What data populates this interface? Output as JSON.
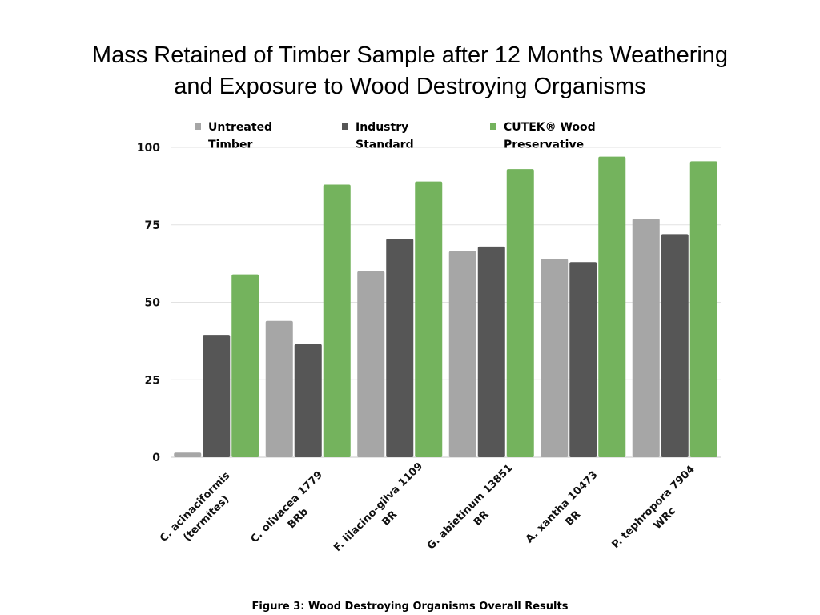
{
  "chart_data": {
    "type": "bar",
    "title_lines": [
      "Mass Retained of Timber Sample after 12 Months Weathering",
      "and Exposure to Wood Destroying Organisms"
    ],
    "categories": [
      [
        "C. acinaciformis",
        "(termites)"
      ],
      [
        "C. olivacea 1779",
        "BRb"
      ],
      [
        "F. lilacino-gilva 1109",
        "BR"
      ],
      [
        "G. abietinum 13851",
        "BR"
      ],
      [
        "A. xantha 10473",
        "BR"
      ],
      [
        "P. tephropora 7904",
        "WRc"
      ]
    ],
    "series": [
      {
        "name_lines": [
          "Untreated",
          "Timber"
        ],
        "color": "#a6a6a6",
        "values": [
          1.5,
          44,
          60,
          66.5,
          64,
          77
        ]
      },
      {
        "name_lines": [
          "Industry",
          "Standard"
        ],
        "color": "#565656",
        "values": [
          39.5,
          36.5,
          70.5,
          68,
          63,
          72
        ]
      },
      {
        "name_lines": [
          "CUTEK® Wood",
          "Preservative"
        ],
        "color": "#74b35d",
        "values": [
          59,
          88,
          89,
          93,
          97,
          95.5
        ]
      }
    ],
    "yticks": [
      0,
      25,
      50,
      75,
      100
    ],
    "ylim": [
      0,
      100
    ],
    "grid": true,
    "legend_position": "top"
  },
  "caption": "Figure 3: Wood Destroying Organisms Overall Results"
}
